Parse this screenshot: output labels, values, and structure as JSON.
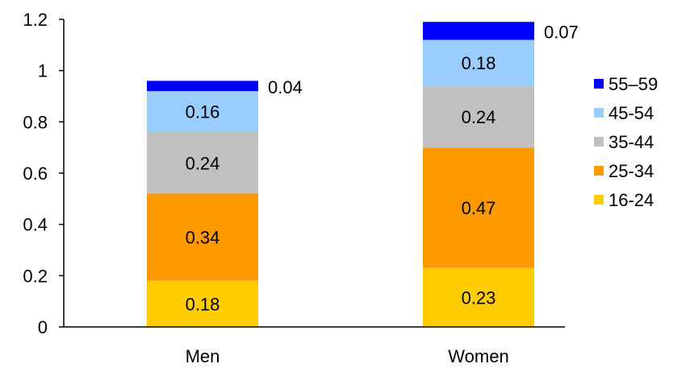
{
  "chart_data": {
    "type": "bar",
    "stacked": true,
    "categories": [
      "Men",
      "Women"
    ],
    "series": [
      {
        "name": "16-24",
        "values": [
          0.18,
          0.23
        ],
        "color": "#FFCC00"
      },
      {
        "name": "25-34",
        "values": [
          0.34,
          0.47
        ],
        "color": "#FF9900"
      },
      {
        "name": "35-44",
        "values": [
          0.24,
          0.24
        ],
        "color": "#C0C0C0"
      },
      {
        "name": "45-54",
        "values": [
          0.16,
          0.18
        ],
        "color": "#99CCFF"
      },
      {
        "name": "55–59",
        "values": [
          0.04,
          0.07
        ],
        "color": "#0000FF"
      }
    ],
    "value_labels": [
      [
        "0.18",
        "0.23"
      ],
      [
        "0.34",
        "0.47"
      ],
      [
        "0.24",
        "0.24"
      ],
      [
        "0.16",
        "0.18"
      ],
      [
        "0.04",
        "0.07"
      ]
    ],
    "ylim": [
      0,
      1.2
    ],
    "yticks": [
      0,
      0.2,
      0.4,
      0.6,
      0.8,
      1,
      1.2
    ],
    "ytick_labels": [
      "0",
      "0.2",
      "0.4",
      "0.6",
      "0.8",
      "1",
      "1.2"
    ],
    "grid": false,
    "legend_position": "right",
    "legend_order": [
      4,
      3,
      2,
      1,
      0
    ],
    "title": "",
    "xlabel": "",
    "ylabel": ""
  }
}
